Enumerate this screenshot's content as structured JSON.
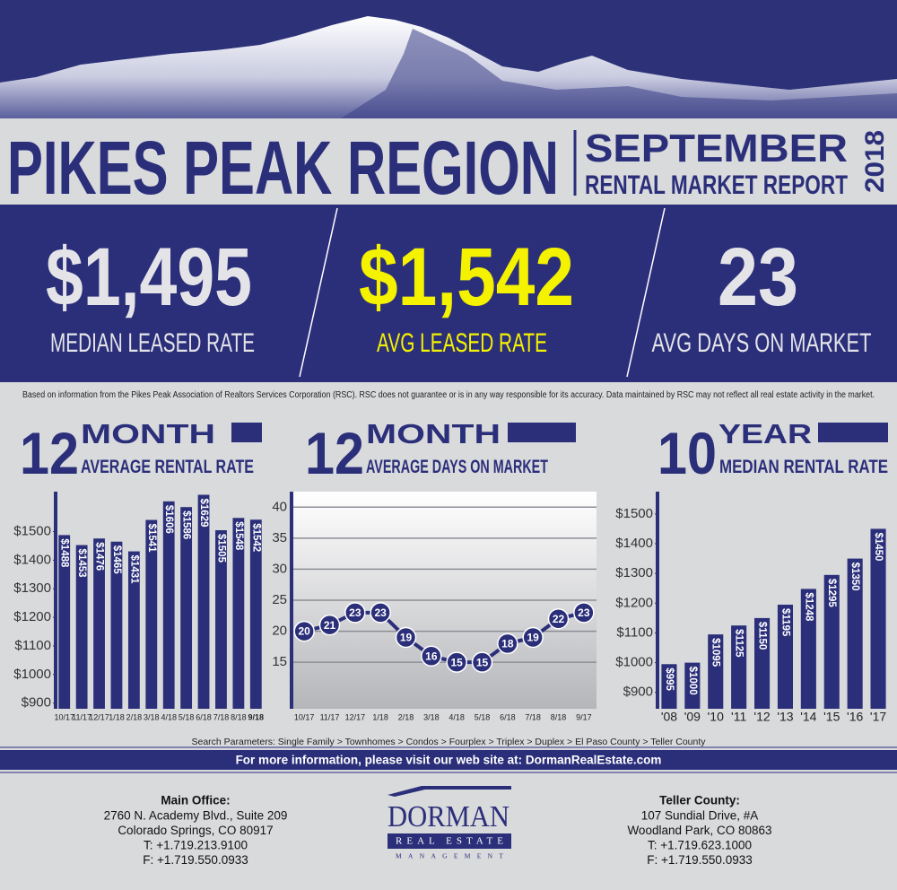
{
  "header": {
    "title": "PIKES PEAK REGION",
    "month": "SEPTEMBER",
    "subtitle": "RENTAL MARKET REPORT",
    "year": "2018"
  },
  "stats": [
    {
      "value": "$1,495",
      "label": "MEDIAN LEASED RATE"
    },
    {
      "value": "$1,542",
      "label": "AVG LEASED RATE"
    },
    {
      "value": "23",
      "label": "AVG DAYS ON MARKET"
    }
  ],
  "disclaimer": "Based on information from the Pikes Peak Association of Realtors Services Corporation (RSC). RSC does not guarantee or is in any way responsible for its accuracy. Data maintained by RSC may not reflect all real estate activity in the market.",
  "chart_data": [
    {
      "type": "bar",
      "period_number": "12",
      "period_unit": "MONTH",
      "title": "AVERAGE RENTAL RATE",
      "categories": [
        "10/17",
        "11/17",
        "12/17",
        "1/18",
        "2/18",
        "3/18",
        "4/18",
        "5/18",
        "6/18",
        "7/18",
        "8/18",
        "9/18"
      ],
      "values": [
        1488,
        1453,
        1476,
        1465,
        1431,
        1541,
        1606,
        1586,
        1629,
        1505,
        1548,
        1542
      ],
      "value_labels": [
        "$1488",
        "$1453",
        "$1476",
        "$1465",
        "$1431",
        "$1541",
        "$1606",
        "$1586",
        "$1629",
        "$1505",
        "$1548",
        "$1542"
      ],
      "color": "#2b2f7a",
      "ylim": [
        880,
        1640
      ],
      "yticks": [
        {
          "value": 900,
          "label": "$900"
        },
        {
          "value": 1000,
          "label": "$1000"
        },
        {
          "value": 1100,
          "label": "$1100"
        },
        {
          "value": 1200,
          "label": "$1200"
        },
        {
          "value": 1300,
          "label": "$1300"
        },
        {
          "value": 1400,
          "label": "$1400"
        },
        {
          "value": 1500,
          "label": "$1500"
        }
      ],
      "grid": false
    },
    {
      "type": "line",
      "period_number": "12",
      "period_unit": "MONTH",
      "title": "AVERAGE DAYS ON MARKET",
      "categories": [
        "10/17",
        "11/17",
        "12/17",
        "1/18",
        "2/18",
        "3/18",
        "4/18",
        "5/18",
        "6/18",
        "7/18",
        "8/18",
        "9/17"
      ],
      "values": [
        20,
        21,
        23,
        23,
        19,
        16,
        15,
        15,
        18,
        19,
        22,
        23
      ],
      "color": "#2b2f7a",
      "ylim": [
        7.5,
        42.5
      ],
      "yticks": [
        15,
        20,
        25,
        30,
        35,
        40
      ],
      "grid": true
    },
    {
      "type": "bar",
      "period_number": "10",
      "period_unit": "YEAR",
      "title": "MEDIAN RENTAL RATE",
      "categories": [
        "'08",
        "'09",
        "'10",
        "'11",
        "'12",
        "'13",
        "'14",
        "'15",
        "'16",
        "'17"
      ],
      "values": [
        995,
        1000,
        1095,
        1125,
        1150,
        1195,
        1248,
        1295,
        1350,
        1450
      ],
      "value_labels": [
        "$995",
        "$1000",
        "$1095",
        "$1125",
        "$1150",
        "$1195",
        "$1248",
        "$1295",
        "$1350",
        "$1450"
      ],
      "color": "#2b2f7a",
      "ylim": [
        845,
        1575
      ],
      "yticks": [
        {
          "value": 900,
          "label": "$900"
        },
        {
          "value": 1000,
          "label": "$1000"
        },
        {
          "value": 1100,
          "label": "$1100"
        },
        {
          "value": 1200,
          "label": "$1200"
        },
        {
          "value": 1300,
          "label": "$1300"
        },
        {
          "value": 1400,
          "label": "$1400"
        },
        {
          "value": 1500,
          "label": "$1500"
        }
      ],
      "grid": false
    }
  ],
  "footer": {
    "search": "Search Parameters: Single Family > Townhomes > Condos > Fourplex > Triplex > Duplex > El Paso County > Teller County",
    "website": "For more information, please visit our web site at: DormanRealEstate.com",
    "main_office": {
      "title": "Main Office:",
      "lines": [
        "2760 N. Academy Blvd.,  Suite 209",
        "Colorado Springs, CO 80917",
        "T: +1.719.213.9100",
        "F: +1.719.550.0933"
      ]
    },
    "teller": {
      "title": "Teller County:",
      "lines": [
        "107 Sundial Drive, #A",
        "Woodland Park, CO 80863",
        "T: +1.719.623.1000",
        "F: +1.719.550.0933"
      ]
    },
    "logo": {
      "name": "DORMAN",
      "tagline": "REAL ESTATE",
      "sub": "MANAGEMENT"
    }
  }
}
